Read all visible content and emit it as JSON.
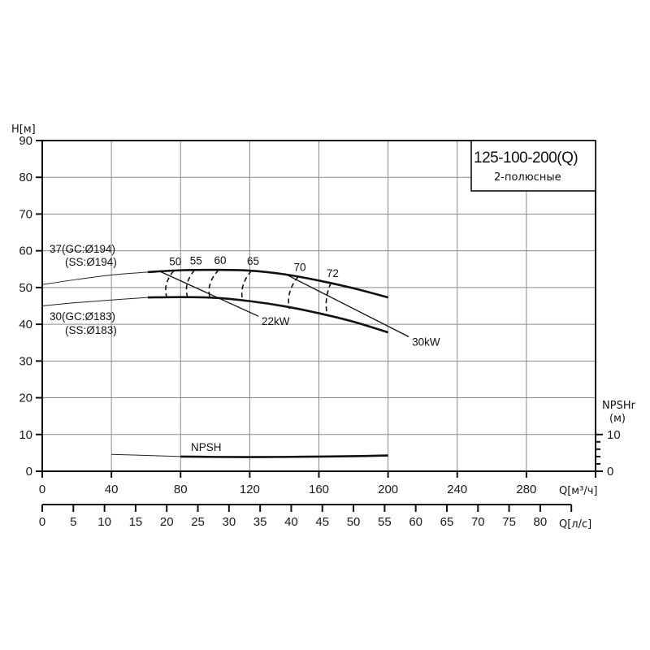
{
  "chart_data": {
    "type": "line",
    "title": "125-100-200(Q)",
    "subtitle": "2-полюсные",
    "ylabel": "H[м]",
    "xlabel": "Q[м³/ч]",
    "xlabel_secondary": "Q[л/с]",
    "ylabel_right": "NPSHr",
    "ylabel_right_unit": "(м)",
    "xlim": [
      0,
      320
    ],
    "ylim": [
      0,
      90
    ],
    "grid": true,
    "x_ticks": [
      0,
      40,
      80,
      120,
      160,
      200,
      240,
      280
    ],
    "x_tick_labels": [
      "0",
      "40",
      "80",
      "120",
      "160",
      "200",
      "240",
      "280"
    ],
    "y_ticks": [
      0,
      10,
      20,
      30,
      40,
      50,
      60,
      70,
      80,
      90
    ],
    "y_tick_labels": [
      "0",
      "10",
      "20",
      "30",
      "40",
      "50",
      "60",
      "70",
      "80",
      "90"
    ],
    "x2_ticks": [
      0,
      5,
      10,
      15,
      20,
      25,
      30,
      35,
      40,
      45,
      50,
      55,
      60,
      65,
      70,
      75,
      80
    ],
    "x2_tick_labels": [
      "0",
      "5",
      "10",
      "15",
      "20",
      "25",
      "30",
      "35",
      "40",
      "45",
      "50",
      "55",
      "60",
      "65",
      "70",
      "75",
      "80"
    ],
    "x2_max": 85,
    "npshr_ticks": [
      0,
      2,
      4,
      6,
      8,
      10
    ],
    "npshr_tick_labels": [
      "0",
      "10"
    ],
    "series": [
      {
        "name": "37(GC:Ø194) (SS:Ø194)",
        "label_line1": "37(GC:Ø194)",
        "label_line2": "(SS:Ø194)",
        "thin_x": [
          0,
          20,
          40,
          61
        ],
        "thin_y": [
          50.8,
          52.2,
          53.4,
          54.2
        ],
        "x": [
          61,
          80,
          100,
          120,
          140,
          160,
          180,
          200
        ],
        "y": [
          54.2,
          54.7,
          54.8,
          54.6,
          53.6,
          51.9,
          49.8,
          47.3
        ]
      },
      {
        "name": "30(GC:Ø183) (SS:Ø183)",
        "label_line1": "30(GC:Ø183)",
        "label_line2": "(SS:Ø183)",
        "thin_x": [
          0,
          20,
          40,
          61
        ],
        "thin_y": [
          45.0,
          45.9,
          46.6,
          47.3
        ],
        "x": [
          61,
          80,
          100,
          120,
          140,
          160,
          180,
          200
        ],
        "y": [
          47.3,
          47.4,
          47.2,
          46.3,
          44.9,
          43.0,
          40.7,
          37.8
        ]
      },
      {
        "name": "NPSH",
        "label": "NPSH",
        "thin_x": [
          40,
          60,
          80
        ],
        "thin_y": [
          4.6,
          4.3,
          4.0
        ],
        "x": [
          80,
          100,
          120,
          140,
          160,
          180,
          200
        ],
        "y": [
          4.0,
          3.9,
          3.85,
          3.9,
          4.0,
          4.1,
          4.3
        ]
      }
    ],
    "efficiency_contours": [
      {
        "label": "50",
        "q_top": 76,
        "h_top": 54.5,
        "q_bot": 72,
        "h_bot": 47.4
      },
      {
        "label": "55",
        "q_top": 88,
        "h_top": 54.7,
        "q_bot": 84,
        "h_bot": 47.4
      },
      {
        "label": "60",
        "q_top": 102,
        "h_top": 54.8,
        "q_bot": 97,
        "h_bot": 47.2
      },
      {
        "label": "65",
        "q_top": 121,
        "h_top": 54.6,
        "q_bot": 116,
        "h_bot": 46.4
      },
      {
        "label": "70",
        "q_top": 148,
        "h_top": 53.0,
        "q_bot": 143,
        "h_bot": 44.2
      },
      {
        "label": "72",
        "q_top": 167,
        "h_top": 51.3,
        "q_bot": 165,
        "h_bot": 42.2
      }
    ],
    "power_lines": [
      {
        "label": "22kW",
        "q_start": 68,
        "h_start": 54.4,
        "q_end": 125,
        "h_end": 42.2
      },
      {
        "label": "30kW",
        "q_start": 140,
        "h_start": 53.8,
        "q_end": 212,
        "h_end": 36.6
      }
    ]
  }
}
